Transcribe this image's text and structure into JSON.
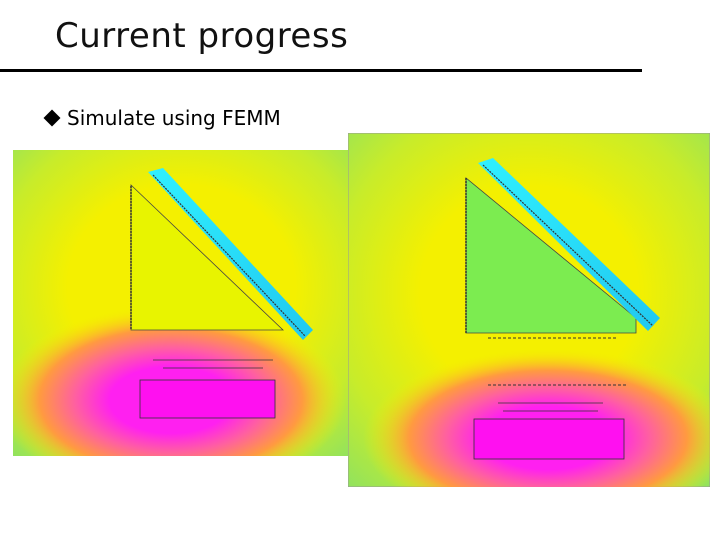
{
  "header": {
    "title": "Current progress"
  },
  "bullets": [
    "Simulate using FEMM"
  ]
}
